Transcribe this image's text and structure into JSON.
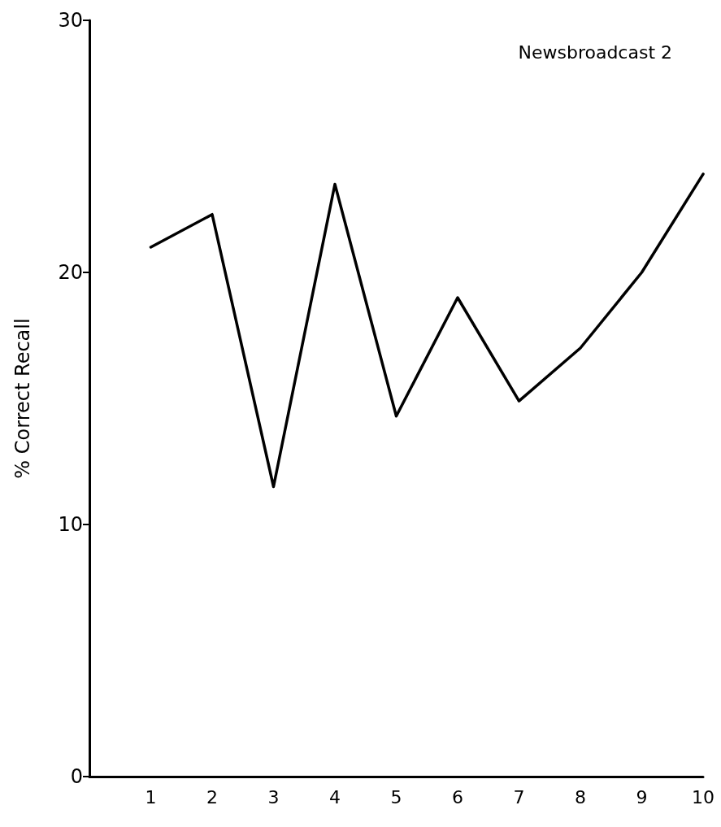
{
  "chart_data": {
    "type": "line",
    "title": "Newsbroadcast 2",
    "ylabel": "% Correct Recall",
    "x": [
      1,
      2,
      3,
      4,
      5,
      6,
      7,
      8,
      9,
      10
    ],
    "series": [
      {
        "color": "#000000",
        "values": [
          21.0,
          22.3,
          11.5,
          23.5,
          14.3,
          19.0,
          14.9,
          17.0,
          20.0,
          23.9
        ]
      }
    ],
    "xlim": [
      0,
      10
    ],
    "xticks": [
      1,
      2,
      3,
      4,
      5,
      6,
      7,
      8,
      9,
      10
    ],
    "ylim": [
      0,
      30
    ],
    "yticks": [
      0,
      10,
      20,
      30
    ],
    "grid": false,
    "marker": "none",
    "line_style": "solid"
  }
}
